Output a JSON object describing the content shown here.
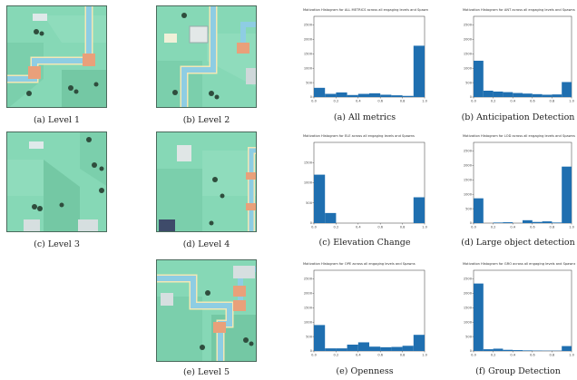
{
  "levels": [
    {
      "label": "(a) Level 1"
    },
    {
      "label": "(b) Level 2"
    },
    {
      "label": "(c) Level 3"
    },
    {
      "label": "(d) Level 4"
    },
    {
      "label": "(e) Level 5"
    }
  ],
  "colors": {
    "grass": "#86d8b6",
    "grass_dark": "#63b897",
    "river": "#8ecde3",
    "bridge": "#e9a07a",
    "bar": "#1f6fb0"
  },
  "chart_data": [
    {
      "type": "bar",
      "caption": "(a) All metrics",
      "title": "Motivation Histogram for ALL METRICS across all engaging levels and Spawns",
      "bins": 10,
      "xlim": [
        0,
        1
      ],
      "ylim": [
        0,
        2800
      ],
      "xticks": [
        "0.0",
        "0.2",
        "0.4",
        "0.6",
        "0.8",
        "1.0"
      ],
      "yticks": [
        "0",
        "500",
        "1000",
        "1500",
        "2000",
        "2500"
      ],
      "values": [
        320,
        110,
        160,
        70,
        110,
        130,
        80,
        60,
        40,
        1780
      ]
    },
    {
      "type": "bar",
      "caption": "(b) Anticipation Detection",
      "title": "Motivation Histogram for ANT across all engaging levels and Spawns",
      "bins": 10,
      "xlim": [
        0,
        1
      ],
      "ylim": [
        0,
        2800
      ],
      "xticks": [
        "0.0",
        "0.2",
        "0.4",
        "0.6",
        "0.8",
        "1.0"
      ],
      "yticks": [
        "0",
        "500",
        "1000",
        "1500",
        "2000",
        "2500"
      ],
      "values": [
        1260,
        220,
        190,
        170,
        140,
        120,
        100,
        80,
        90,
        520
      ]
    },
    {
      "type": "bar",
      "caption": "(c) Elevation Change",
      "title": "Motivation Histogram for ELE across all engaging levels and Spawns",
      "bins": 10,
      "xlim": [
        0,
        1
      ],
      "ylim": [
        0,
        2000
      ],
      "xticks": [
        "0.0",
        "0.2",
        "0.4",
        "0.6",
        "0.8",
        "1.0"
      ],
      "yticks": [
        "0",
        "500",
        "1000",
        "1500"
      ],
      "values": [
        1200,
        250,
        0,
        0,
        0,
        0,
        0,
        0,
        0,
        640
      ]
    },
    {
      "type": "bar",
      "caption": "(d) Large object detection",
      "title": "Motivation Histogram for LOD across all engaging levels and Spawns",
      "bins": 10,
      "xlim": [
        0,
        1
      ],
      "ylim": [
        0,
        2800
      ],
      "xticks": [
        "0.0",
        "0.2",
        "0.4",
        "0.6",
        "0.8",
        "1.0"
      ],
      "yticks": [
        "0",
        "500",
        "1000",
        "1500",
        "2000",
        "2500"
      ],
      "values": [
        860,
        0,
        20,
        30,
        0,
        100,
        40,
        60,
        20,
        1960
      ]
    },
    {
      "type": "bar",
      "caption": "(e) Openness",
      "title": "Motivation Histogram for OPE across all engaging levels and Spawns",
      "bins": 10,
      "xlim": [
        0,
        1
      ],
      "ylim": [
        0,
        2800
      ],
      "xticks": [
        "0.0",
        "0.2",
        "0.4",
        "0.6",
        "0.8",
        "1.0"
      ],
      "yticks": [
        "0",
        "500",
        "1000",
        "1500",
        "2000",
        "2500"
      ],
      "values": [
        900,
        90,
        90,
        220,
        300,
        150,
        130,
        140,
        180,
        560
      ]
    },
    {
      "type": "bar",
      "caption": "(f) Group Detection",
      "title": "Motivation Histogram for GRO across all engaging levels and Spawns",
      "bins": 10,
      "xlim": [
        0,
        1
      ],
      "ylim": [
        0,
        2800
      ],
      "xticks": [
        "0.0",
        "0.2",
        "0.4",
        "0.6",
        "0.8",
        "1.0"
      ],
      "yticks": [
        "0",
        "500",
        "1000",
        "1500",
        "2000",
        "2500"
      ],
      "values": [
        2340,
        60,
        80,
        40,
        30,
        20,
        15,
        10,
        10,
        170
      ]
    }
  ]
}
